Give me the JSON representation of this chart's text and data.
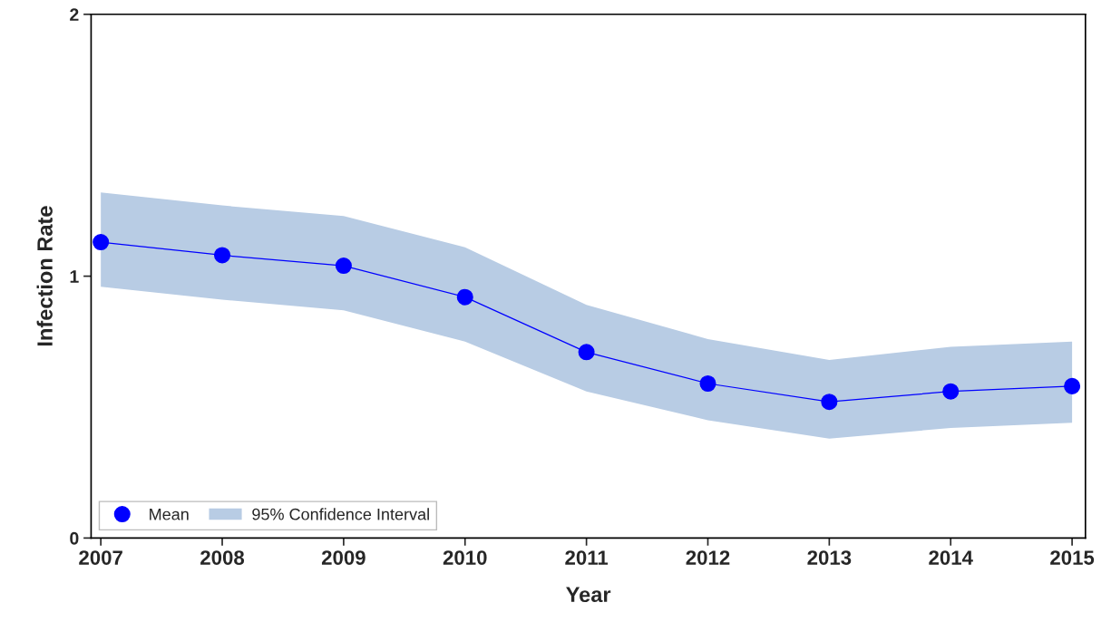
{
  "chart_data": {
    "type": "line",
    "xlabel": "Year",
    "ylabel": "Infection Rate",
    "x": [
      2007,
      2008,
      2009,
      2010,
      2011,
      2012,
      2013,
      2014,
      2015
    ],
    "series": [
      {
        "name": "Mean",
        "color": "#0000ff",
        "marker": "circle",
        "values": [
          1.13,
          1.08,
          1.04,
          0.92,
          0.71,
          0.59,
          0.52,
          0.56,
          0.58
        ],
        "lower": [
          0.96,
          0.91,
          0.87,
          0.75,
          0.56,
          0.45,
          0.38,
          0.42,
          0.44
        ],
        "upper": [
          1.32,
          1.27,
          1.23,
          1.11,
          0.89,
          0.76,
          0.68,
          0.73,
          0.75
        ]
      }
    ],
    "annotations": [
      "95% Confidence Interval"
    ],
    "xlim": [
      2006.92,
      2015.11
    ],
    "xticks": [
      2007,
      2008,
      2009,
      2010,
      2011,
      2012,
      2013,
      2014,
      2015
    ],
    "ylim": [
      0,
      2
    ],
    "yticks": [
      0,
      1,
      2
    ],
    "grid": false,
    "legend": "bottom left"
  }
}
